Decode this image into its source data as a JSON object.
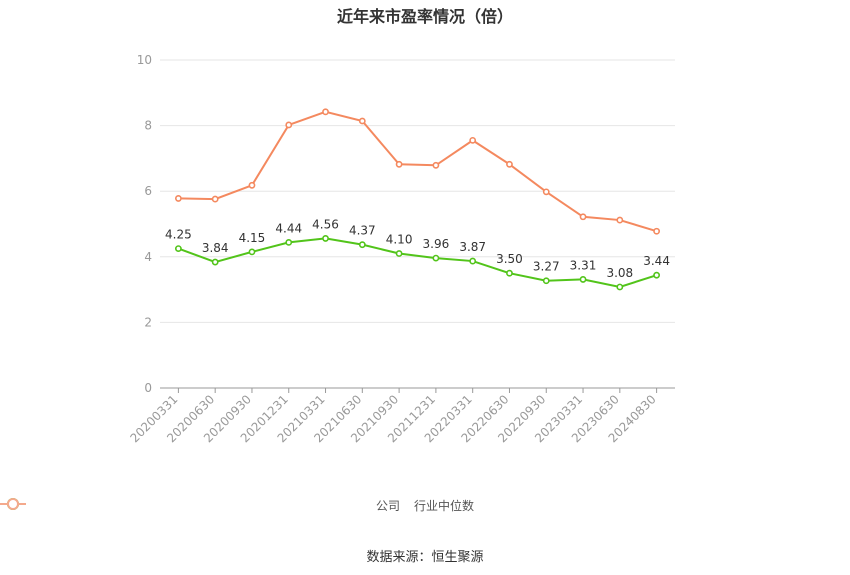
{
  "chart_data": {
    "type": "line",
    "title": "近年来市盈率情况（倍）",
    "categories": [
      "20200331",
      "20200630",
      "20200930",
      "20201231",
      "20210331",
      "20210630",
      "20210930",
      "20211231",
      "20220331",
      "20220630",
      "20220930",
      "20230331",
      "20230630",
      "20240830"
    ],
    "series": [
      {
        "name": "公司",
        "color": "#52c41a",
        "show_labels": true,
        "values": [
          4.25,
          3.84,
          4.15,
          4.44,
          4.56,
          4.37,
          4.1,
          3.96,
          3.87,
          3.5,
          3.27,
          3.31,
          3.08,
          3.44
        ]
      },
      {
        "name": "行业中位数",
        "color": "#f4895f",
        "show_labels": false,
        "values": [
          5.78,
          5.76,
          6.18,
          8.02,
          8.42,
          8.14,
          6.82,
          6.79,
          7.55,
          6.82,
          5.98,
          5.22,
          5.12,
          4.78
        ]
      }
    ],
    "ylim": [
      0,
      10
    ],
    "yticks": [
      0,
      2,
      4,
      6,
      8,
      10
    ],
    "grid": true,
    "legend_position": "bottom"
  },
  "source": "数据来源：恒生聚源"
}
